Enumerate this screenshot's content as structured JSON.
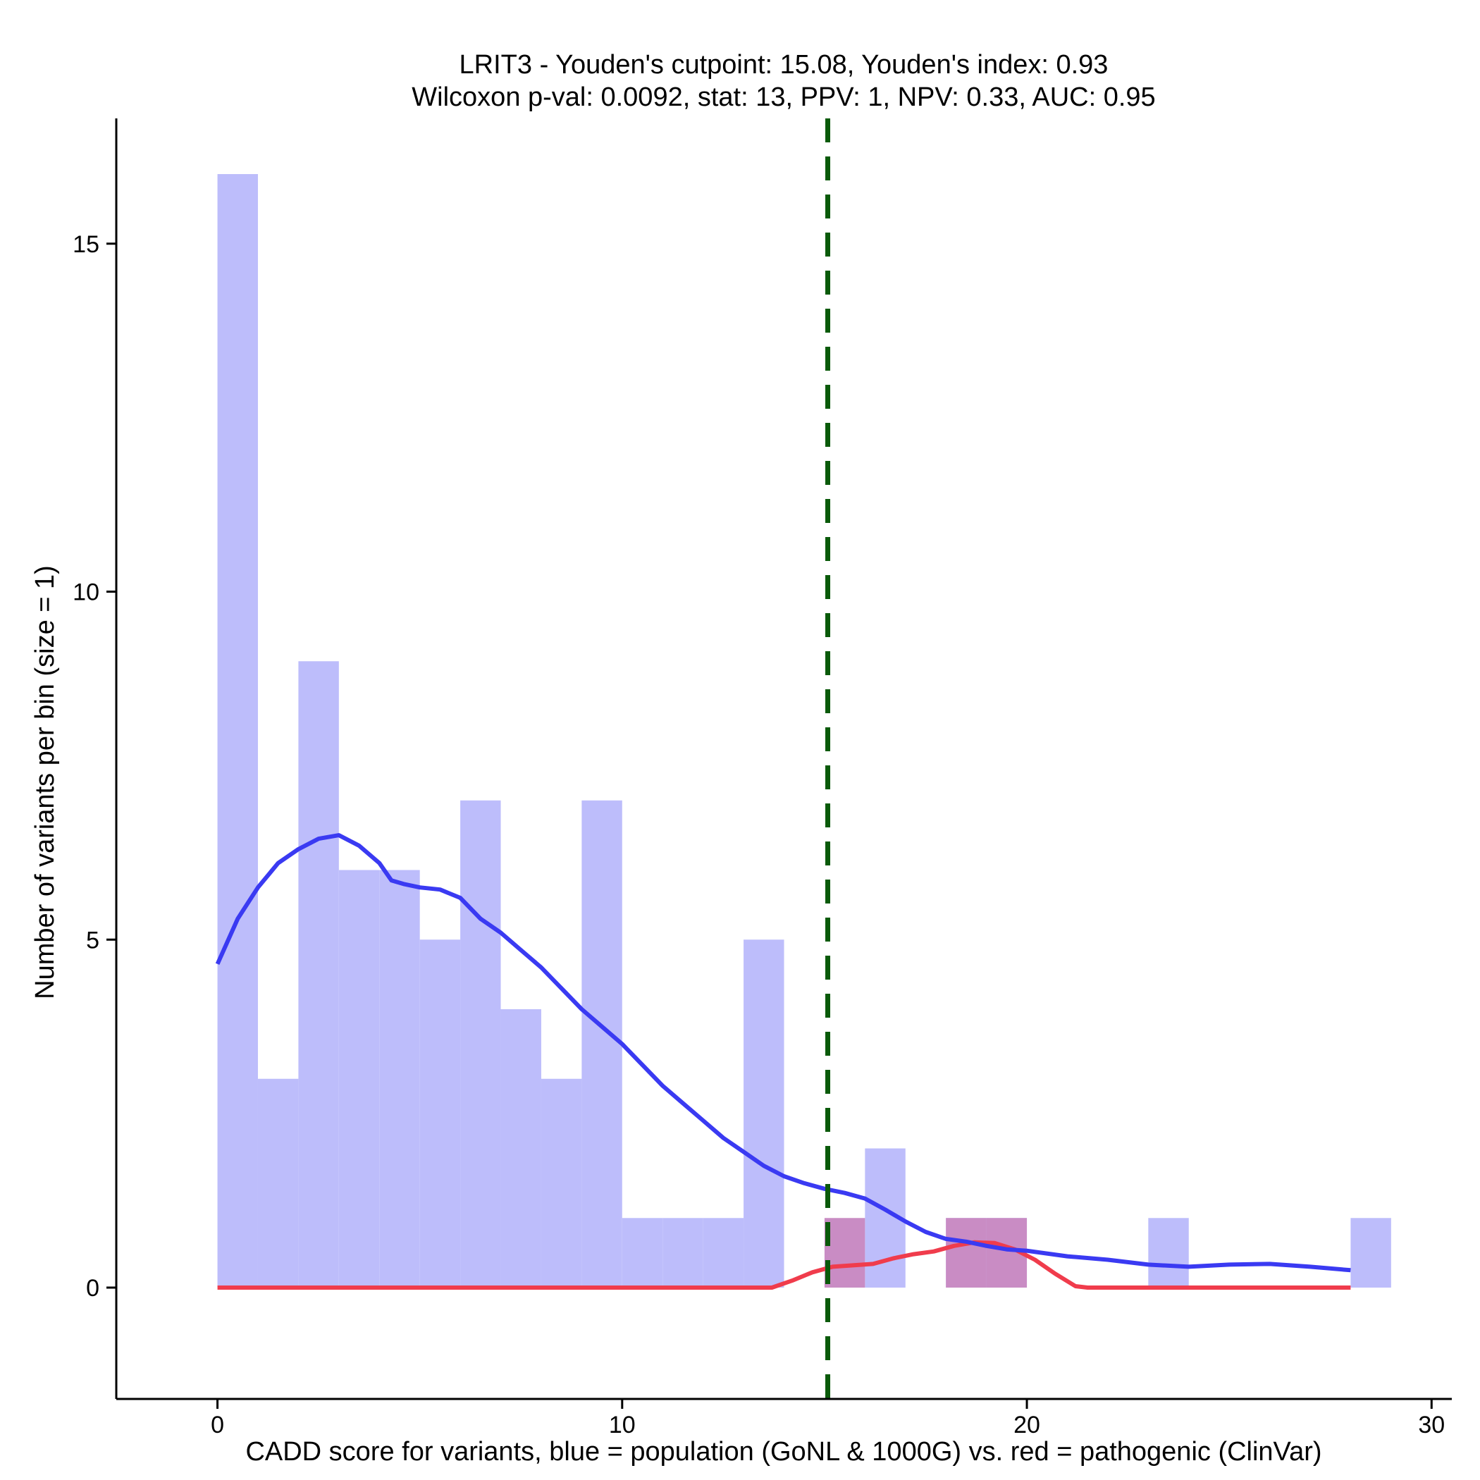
{
  "chart_data": {
    "type": "histogram",
    "title_line1": "LRIT3 - Youden's cutpoint: 15.08, Youden's index: 0.93",
    "title_line2": "Wilcoxon p-val: 0.0092, stat: 13, PPV: 1, NPV: 0.33, AUC: 0.95",
    "xlabel": "CADD score for variants, blue = population (GoNL & 1000G) vs. red = pathogenic (ClinVar)",
    "ylabel": "Number of variants per bin (size = 1)",
    "xlim": [
      -2.5,
      30.5
    ],
    "ylim": [
      -1.6,
      16.8
    ],
    "x_ticks": [
      0,
      10,
      20,
      30
    ],
    "x_tick_labels": [
      "0",
      "10",
      "20",
      "30"
    ],
    "y_ticks": [
      0,
      5,
      10,
      15
    ],
    "y_tick_labels": [
      "0",
      "5",
      "10",
      "15"
    ],
    "bin_size": 1,
    "cutpoint": 15.08,
    "colors": {
      "population_bar": "#bdbdfb",
      "pathogenic_bar": "#c98cc4",
      "population_line": "#3a3af2",
      "pathogenic_line": "#f03c4c",
      "cutpoint_line": "#0a5a0a"
    },
    "series": [
      {
        "name": "population (GoNL & 1000G)",
        "bins": [
          {
            "start": 0,
            "count": 16
          },
          {
            "start": 1,
            "count": 3
          },
          {
            "start": 2,
            "count": 9
          },
          {
            "start": 3,
            "count": 6
          },
          {
            "start": 4,
            "count": 6
          },
          {
            "start": 5,
            "count": 5
          },
          {
            "start": 6,
            "count": 7
          },
          {
            "start": 7,
            "count": 4
          },
          {
            "start": 8,
            "count": 3
          },
          {
            "start": 9,
            "count": 7
          },
          {
            "start": 10,
            "count": 1
          },
          {
            "start": 11,
            "count": 1
          },
          {
            "start": 12,
            "count": 1
          },
          {
            "start": 13,
            "count": 5
          },
          {
            "start": 16,
            "count": 2
          },
          {
            "start": 18,
            "count": 1
          },
          {
            "start": 19,
            "count": 1
          },
          {
            "start": 23,
            "count": 1
          },
          {
            "start": 28,
            "count": 1
          }
        ],
        "density_curve": [
          [
            0,
            4.65
          ],
          [
            0.5,
            5.3
          ],
          [
            1,
            5.75
          ],
          [
            1.5,
            6.1
          ],
          [
            2,
            6.3
          ],
          [
            2.5,
            6.45
          ],
          [
            3,
            6.5
          ],
          [
            3.5,
            6.35
          ],
          [
            4,
            6.1
          ],
          [
            4.3,
            5.85
          ],
          [
            4.6,
            5.8
          ],
          [
            5,
            5.75
          ],
          [
            5.5,
            5.72
          ],
          [
            6,
            5.6
          ],
          [
            6.5,
            5.3
          ],
          [
            7,
            5.1
          ],
          [
            7.5,
            4.85
          ],
          [
            8,
            4.6
          ],
          [
            8.5,
            4.3
          ],
          [
            9,
            4.0
          ],
          [
            9.5,
            3.75
          ],
          [
            10,
            3.5
          ],
          [
            10.5,
            3.2
          ],
          [
            11,
            2.9
          ],
          [
            11.5,
            2.65
          ],
          [
            12,
            2.4
          ],
          [
            12.5,
            2.15
          ],
          [
            13,
            1.95
          ],
          [
            13.5,
            1.75
          ],
          [
            14,
            1.6
          ],
          [
            14.5,
            1.5
          ],
          [
            15,
            1.42
          ],
          [
            15.5,
            1.36
          ],
          [
            16,
            1.28
          ],
          [
            16.5,
            1.12
          ],
          [
            17,
            0.95
          ],
          [
            17.5,
            0.8
          ],
          [
            18,
            0.7
          ],
          [
            18.5,
            0.66
          ],
          [
            19,
            0.6
          ],
          [
            19.5,
            0.55
          ],
          [
            20,
            0.53
          ],
          [
            21,
            0.45
          ],
          [
            22,
            0.4
          ],
          [
            23,
            0.33
          ],
          [
            24,
            0.3
          ],
          [
            25,
            0.33
          ],
          [
            26,
            0.34
          ],
          [
            27,
            0.3
          ],
          [
            28,
            0.25
          ]
        ]
      },
      {
        "name": "pathogenic (ClinVar)",
        "bins": [
          {
            "start": 15,
            "count": 1
          },
          {
            "start": 18,
            "count": 1
          },
          {
            "start": 19,
            "count": 1
          }
        ],
        "density_curve": [
          [
            0,
            0
          ],
          [
            13.7,
            0
          ],
          [
            14.2,
            0.1
          ],
          [
            14.7,
            0.22
          ],
          [
            15.2,
            0.3
          ],
          [
            15.7,
            0.32
          ],
          [
            16.2,
            0.34
          ],
          [
            16.7,
            0.42
          ],
          [
            17.2,
            0.48
          ],
          [
            17.7,
            0.52
          ],
          [
            18.2,
            0.6
          ],
          [
            18.7,
            0.65
          ],
          [
            19.2,
            0.64
          ],
          [
            19.7,
            0.55
          ],
          [
            20.2,
            0.4
          ],
          [
            20.7,
            0.2
          ],
          [
            21.2,
            0.02
          ],
          [
            21.5,
            0
          ],
          [
            28,
            0
          ]
        ]
      }
    ]
  }
}
